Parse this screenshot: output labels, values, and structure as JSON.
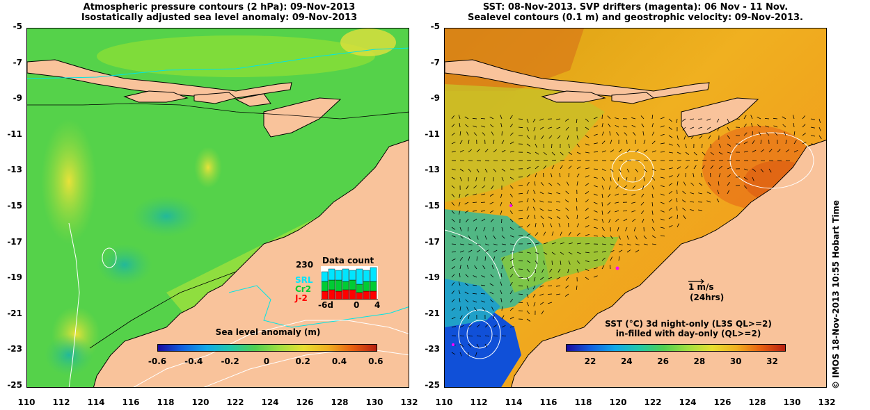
{
  "left_panel": {
    "title_line1": "Atmospheric pressure contours (2 hPa): 09-Nov-2013",
    "title_line2": "Isostatically adjusted sea level anomaly: 09-Nov-2013",
    "colorbar_label": "Sea level anomaly (m)",
    "colorbar_ticks": [
      "-0.6",
      "-0.4",
      "-0.2",
      "0",
      "0.2",
      "0.4",
      "0.6"
    ],
    "inset": {
      "title": "Data count",
      "ymax": "230",
      "series": [
        "SRL",
        "Cr2",
        "J-2"
      ],
      "xticks": [
        "-6d",
        "0",
        "4"
      ],
      "colors": {
        "SRL": "#00e5ff",
        "Cr2": "#00cc33",
        "J-2": "#ff0000"
      }
    }
  },
  "right_panel": {
    "title_line1": "SST: 08-Nov-2013. SVP drifters (magenta): 06 Nov - 11 Nov.",
    "title_line2": "Sealevel contours (0.1 m) and geostrophic velocity: 09-Nov-2013.",
    "velocity_scale": "1 m/s",
    "velocity_time": "(24hrs)",
    "colorbar_label_line1": "SST (°C)  3d night-only (L3S QL>=2)",
    "colorbar_label_line2": "in-filled with day-only (QL>=2)",
    "colorbar_ticks": [
      "22",
      "24",
      "26",
      "28",
      "30",
      "32"
    ]
  },
  "axes": {
    "y_ticks": [
      "-5",
      "-7",
      "-9",
      "-11",
      "-13",
      "-15",
      "-17",
      "-19",
      "-21",
      "-23",
      "-25"
    ],
    "x_ticks": [
      "110",
      "112",
      "114",
      "116",
      "118",
      "120",
      "122",
      "124",
      "126",
      "128",
      "130",
      "132"
    ]
  },
  "credit": "© IMOS 18-Nov-2013 10:55 Hobart Time",
  "colors": {
    "land": "#f9c39b",
    "coast": "#000000",
    "ssh_contour": "#ffffff",
    "pressure_contour": "#00e5e5"
  }
}
